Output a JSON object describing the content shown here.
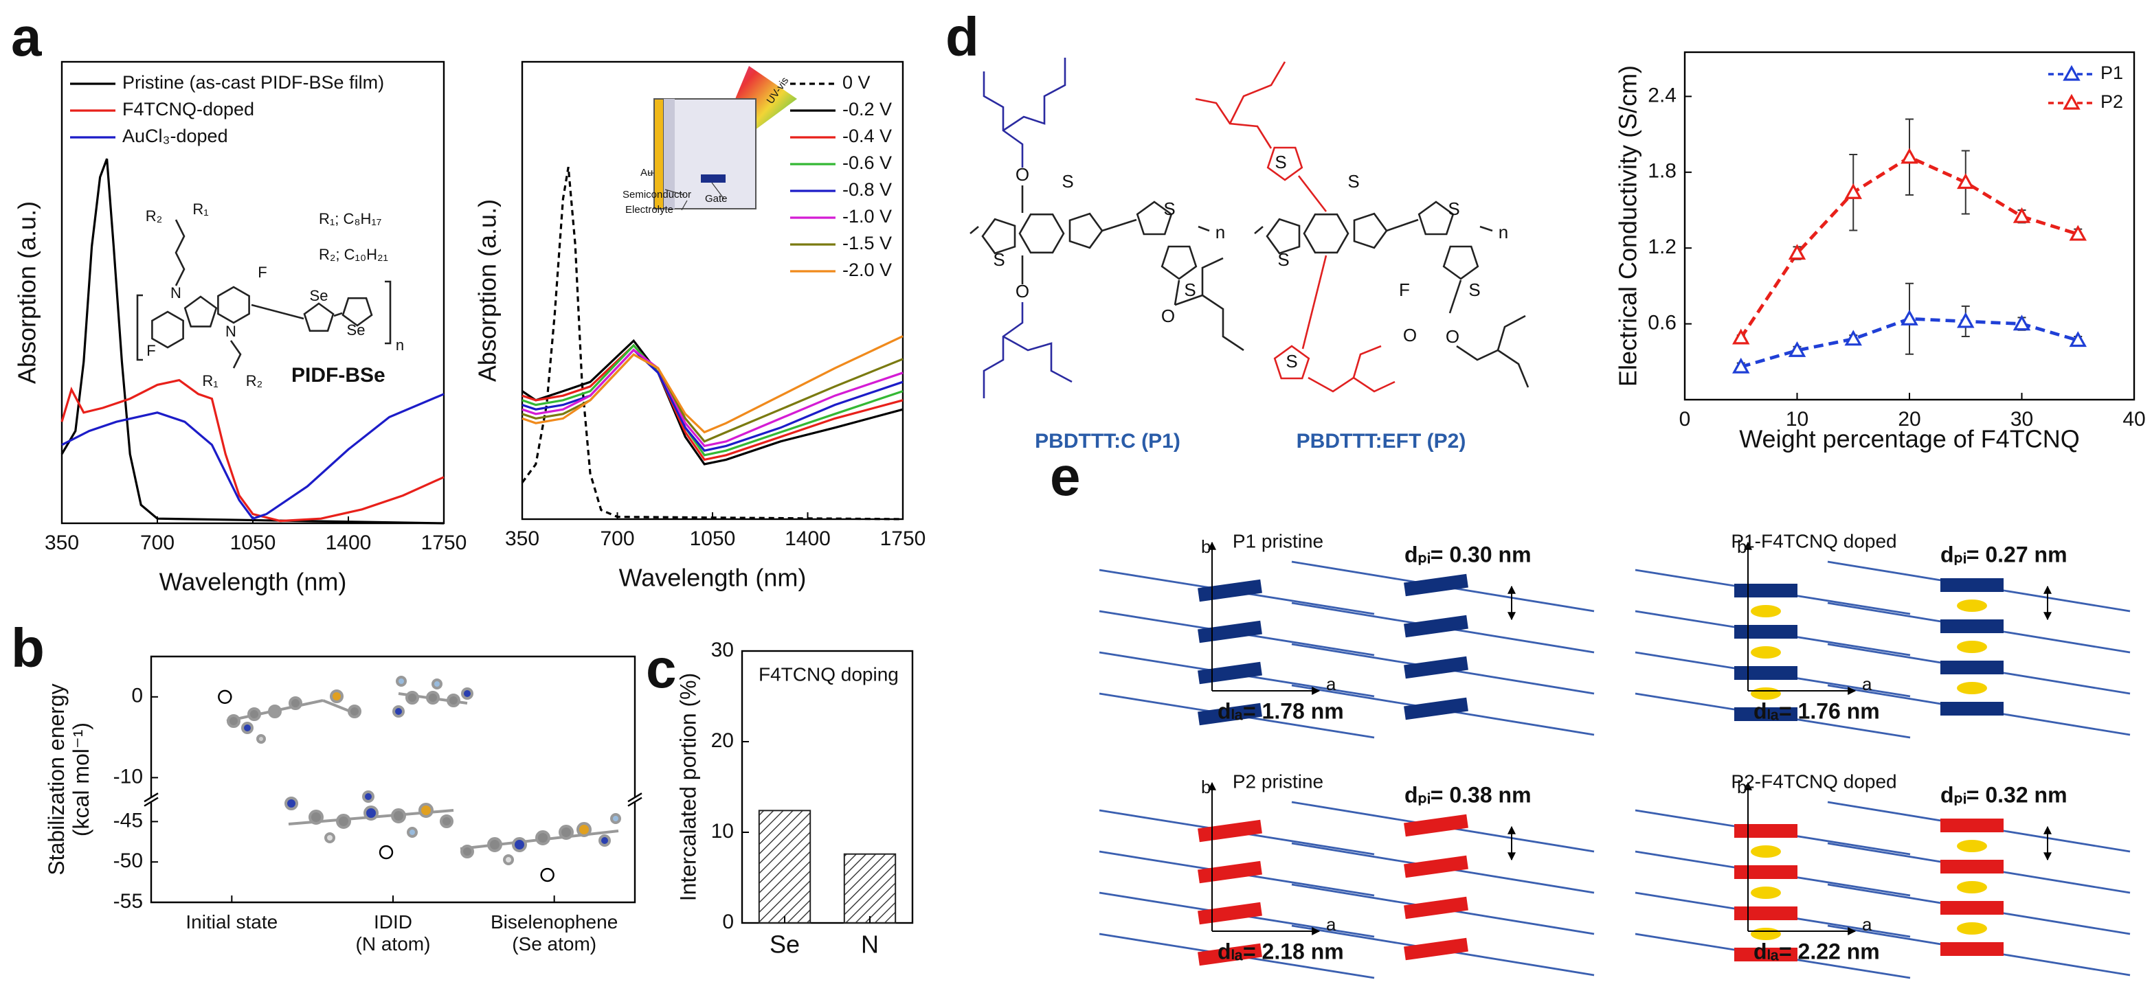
{
  "panel_labels": [
    "a",
    "b",
    "c",
    "d",
    "e"
  ],
  "chart_data": [
    {
      "type": "line",
      "xlabel": "Wavelength (nm)",
      "ylabel": "Absorption (a.u.)",
      "xlim": [
        350,
        1750
      ],
      "xticks": [
        350,
        700,
        1050,
        1400,
        1750
      ],
      "ylim": [
        0,
        1
      ],
      "legend": "upper left",
      "series": [
        {
          "name": "Pristine (as-cast PIDF-BSe film)",
          "color": "#000000",
          "x": [
            350,
            400,
            430,
            460,
            490,
            515,
            540,
            570,
            600,
            640,
            700,
            1750
          ],
          "values": [
            0.15,
            0.2,
            0.35,
            0.6,
            0.75,
            0.79,
            0.6,
            0.35,
            0.15,
            0.04,
            0.01,
            0
          ]
        },
        {
          "name": "F4TCNQ-doped",
          "color": "#e8201a",
          "x": [
            350,
            385,
            430,
            500,
            600,
            700,
            780,
            850,
            900,
            950,
            1000,
            1050,
            1150,
            1300,
            1450,
            1600,
            1750
          ],
          "values": [
            0.22,
            0.29,
            0.24,
            0.25,
            0.27,
            0.3,
            0.31,
            0.28,
            0.27,
            0.15,
            0.06,
            0.02,
            0.005,
            0.01,
            0.03,
            0.06,
            0.1
          ]
        },
        {
          "name": "AuCl₃-doped",
          "color": "#1c1cc8",
          "x": [
            350,
            450,
            550,
            700,
            800,
            900,
            950,
            1000,
            1050,
            1100,
            1250,
            1400,
            1550,
            1750
          ],
          "values": [
            0.17,
            0.2,
            0.22,
            0.24,
            0.22,
            0.17,
            0.11,
            0.05,
            0.01,
            0.02,
            0.08,
            0.16,
            0.23,
            0.28
          ]
        }
      ],
      "annotations": [
        "R₁; C₈H₁₇",
        "R₂; C₁₀H₂₁",
        "PIDF-BSe"
      ],
      "structure_labels": [
        "R₂",
        "R₁",
        "N",
        "F",
        "Se",
        "Se",
        "n",
        "F",
        "N",
        "R₁",
        "R₂"
      ]
    },
    {
      "type": "line",
      "xlabel": "Wavelength (nm)",
      "ylabel": "Absorption (a.u.)",
      "xlim": [
        350,
        1750
      ],
      "xticks": [
        350,
        700,
        1050,
        1400,
        1750
      ],
      "ylim": [
        0,
        1
      ],
      "legend": "upper right",
      "series": [
        {
          "name": "0 V",
          "color": "#000000",
          "dash": true,
          "x": [
            350,
            400,
            440,
            470,
            500,
            520,
            545,
            570,
            600,
            640,
            700,
            1750
          ],
          "values": [
            0.08,
            0.12,
            0.25,
            0.45,
            0.7,
            0.77,
            0.6,
            0.3,
            0.1,
            0.02,
            0.005,
            0
          ]
        },
        {
          "name": "-0.2 V",
          "color": "#000000",
          "x": [
            350,
            400,
            500,
            600,
            760,
            850,
            950,
            1020,
            1100,
            1300,
            1500,
            1750
          ],
          "values": [
            0.28,
            0.26,
            0.28,
            0.3,
            0.39,
            0.32,
            0.18,
            0.12,
            0.13,
            0.17,
            0.2,
            0.24
          ]
        },
        {
          "name": "-0.4 V",
          "color": "#e8201a",
          "x": [
            350,
            400,
            500,
            600,
            760,
            850,
            950,
            1020,
            1100,
            1300,
            1500,
            1750
          ],
          "values": [
            0.27,
            0.26,
            0.27,
            0.29,
            0.38,
            0.32,
            0.19,
            0.13,
            0.14,
            0.18,
            0.22,
            0.26
          ]
        },
        {
          "name": "-0.6 V",
          "color": "#34b834",
          "x": [
            350,
            400,
            500,
            600,
            760,
            850,
            950,
            1020,
            1100,
            1300,
            1500,
            1750
          ],
          "values": [
            0.26,
            0.25,
            0.26,
            0.28,
            0.38,
            0.32,
            0.2,
            0.14,
            0.15,
            0.19,
            0.23,
            0.28
          ]
        },
        {
          "name": "-0.8 V",
          "color": "#1c1cc8",
          "x": [
            350,
            400,
            500,
            600,
            760,
            850,
            950,
            1020,
            1100,
            1300,
            1500,
            1750
          ],
          "values": [
            0.25,
            0.24,
            0.25,
            0.27,
            0.37,
            0.32,
            0.2,
            0.15,
            0.16,
            0.2,
            0.25,
            0.3
          ]
        },
        {
          "name": "-1.0 V",
          "color": "#d41cd4",
          "x": [
            350,
            400,
            500,
            600,
            760,
            850,
            950,
            1020,
            1100,
            1300,
            1500,
            1750
          ],
          "values": [
            0.24,
            0.23,
            0.24,
            0.27,
            0.37,
            0.33,
            0.21,
            0.16,
            0.17,
            0.22,
            0.27,
            0.32
          ]
        },
        {
          "name": "-1.5 V",
          "color": "#7a7a10",
          "x": [
            350,
            400,
            500,
            600,
            760,
            850,
            950,
            1020,
            1100,
            1300,
            1500,
            1750
          ],
          "values": [
            0.23,
            0.22,
            0.23,
            0.26,
            0.36,
            0.33,
            0.22,
            0.17,
            0.19,
            0.24,
            0.29,
            0.35
          ]
        },
        {
          "name": "-2.0 V",
          "color": "#f08a1c",
          "x": [
            350,
            400,
            500,
            600,
            760,
            850,
            950,
            1020,
            1100,
            1300,
            1500,
            1750
          ],
          "values": [
            0.22,
            0.21,
            0.22,
            0.26,
            0.36,
            0.33,
            0.23,
            0.19,
            0.21,
            0.27,
            0.33,
            0.4
          ]
        }
      ],
      "inset_labels": [
        "UV-vis",
        "Au",
        "Semiconductor",
        "Electrolyte",
        "Gate"
      ]
    },
    {
      "type": "scatter",
      "ylabel": "Stabilization energy\n(kcal mol⁻¹)",
      "categories": [
        "Initial state",
        "IDID\n(N atom)",
        "Biselenophene\n(Se atom)"
      ],
      "values": [
        0,
        -48.8,
        -51.6
      ],
      "ylim": [
        -55,
        5
      ],
      "ybreak": [
        -10,
        -45
      ],
      "yticks": [
        0,
        -10,
        -45,
        -50,
        -55
      ]
    },
    {
      "type": "bar",
      "title": "F4TCNQ doping",
      "ylabel": "Intercalated portion (%)",
      "categories": [
        "Se",
        "N"
      ],
      "values": [
        12.4,
        7.6
      ],
      "ylim": [
        0,
        30
      ],
      "yticks": [
        0,
        10,
        20,
        30
      ],
      "hatch": true
    },
    {
      "type": "line",
      "xlabel": "Weight percentage of F4TCNQ",
      "ylabel": "Electrical Conductivity (S/cm)",
      "xlim": [
        0,
        40
      ],
      "xticks": [
        0,
        10,
        20,
        30,
        40
      ],
      "ylim": [
        0,
        2.75
      ],
      "yticks": [
        0.6,
        1.2,
        1.8,
        2.4
      ],
      "legend": "upper right",
      "markers": "triangle",
      "series": [
        {
          "name": "P1",
          "color": "#1f3fd6",
          "dash": true,
          "x": [
            5,
            10,
            15,
            20,
            25,
            30,
            35
          ],
          "values": [
            0.26,
            0.39,
            0.48,
            0.64,
            0.62,
            0.6,
            0.47
          ],
          "errors": [
            0.03,
            0.03,
            0.03,
            0.28,
            0.12,
            0.05,
            0.03
          ]
        },
        {
          "name": "P2",
          "color": "#e8201a",
          "dash": true,
          "x": [
            5,
            10,
            15,
            20,
            25,
            30,
            35
          ],
          "values": [
            0.49,
            1.16,
            1.64,
            1.92,
            1.72,
            1.45,
            1.31
          ],
          "errors": [
            0.02,
            0.05,
            0.3,
            0.3,
            0.25,
            0.05,
            0.04
          ]
        }
      ]
    }
  ],
  "structures_d": {
    "P1": {
      "name": "PBDTTT:C (P1)",
      "atoms": [
        "O",
        "O",
        "S",
        "S",
        "S",
        "S",
        "O",
        "n"
      ]
    },
    "P2": {
      "name": "PBDTTT:EFT (P2)",
      "atoms": [
        "S",
        "S",
        "S",
        "S",
        "S",
        "S",
        "F",
        "O",
        "O",
        "n"
      ]
    }
  },
  "panel_e": {
    "diagrams": [
      {
        "title": "P1 pristine",
        "d_pi": "dₚᵢ= 0.30 nm",
        "d_la": "dₗₐ= 1.78 nm"
      },
      {
        "title": "P1-F4TCNQ doped",
        "d_pi": "dₚᵢ= 0.27 nm",
        "d_la": "dₗₐ= 1.76 nm"
      },
      {
        "title": "P2 pristine",
        "d_pi": "dₚᵢ= 0.38 nm",
        "d_la": "dₗₐ= 2.18 nm"
      },
      {
        "title": "P2-F4TCNQ doped",
        "d_pi": "dₚᵢ= 0.32 nm",
        "d_la": "dₗₐ= 2.22 nm"
      }
    ],
    "axis_a": "a",
    "axis_b": "b"
  }
}
